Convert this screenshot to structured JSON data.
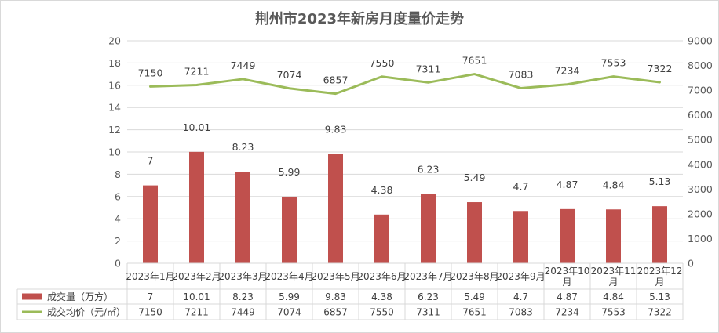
{
  "chart_data": {
    "type": "bar",
    "title": "荆州市2023年新房月度量价走势",
    "categories": [
      "2023年1月",
      "2023年2月",
      "2023年3月",
      "2023年4月",
      "2023年5月",
      "2023年6月",
      "2023年7月",
      "2023年8月",
      "2023年9月",
      "2023年10月",
      "2023年11月",
      "2023年12月"
    ],
    "y_left": {
      "range": [
        0,
        20
      ],
      "step": 2
    },
    "y_right": {
      "range": [
        0,
        9000
      ],
      "step": 1000
    },
    "grid": "horizontal",
    "legend": "data-table-left",
    "series": [
      {
        "name": "成交量（万方）",
        "type": "bar",
        "axis": "left",
        "color": "#c0504d",
        "values": [
          7,
          10.01,
          8.23,
          5.99,
          9.83,
          4.38,
          6.23,
          5.49,
          4.7,
          4.87,
          4.84,
          5.13
        ]
      },
      {
        "name": "成交均价（元/㎡）",
        "type": "line",
        "axis": "right",
        "color": "#9bbb59",
        "values": [
          7150,
          7211,
          7449,
          7074,
          6857,
          7550,
          7311,
          7651,
          7083,
          7234,
          7553,
          7322
        ]
      }
    ]
  }
}
